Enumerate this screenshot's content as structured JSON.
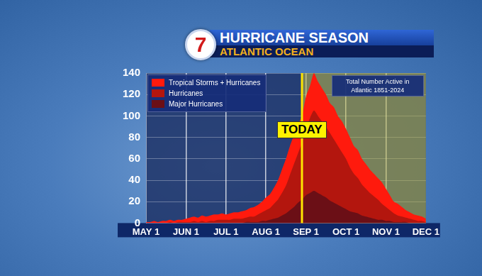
{
  "chart_data": {
    "type": "area",
    "title": "HURRICANE SEASON",
    "subtitle": "ATLANTIC OCEAN",
    "logo": "7",
    "note": "Total Number Active in Atlantic 1851-2024",
    "annotations": [
      {
        "text": "TODAY",
        "category_index": 39
      }
    ],
    "categories": [
      "MAY 1",
      null,
      null,
      null,
      null,
      null,
      null,
      null,
      null,
      null,
      "JUN 1",
      null,
      null,
      null,
      null,
      null,
      null,
      null,
      null,
      null,
      "JUL 1",
      null,
      null,
      null,
      null,
      null,
      null,
      null,
      null,
      null,
      "AUG 1",
      null,
      null,
      null,
      null,
      null,
      null,
      null,
      null,
      null,
      "SEP 1",
      null,
      null,
      null,
      null,
      null,
      null,
      null,
      null,
      null,
      "OCT 1",
      null,
      null,
      null,
      null,
      null,
      null,
      null,
      null,
      null,
      "NOV 1",
      null,
      null,
      null,
      null,
      null,
      null,
      null,
      null,
      null,
      "DEC 1"
    ],
    "series": [
      {
        "name": "Tropical Storms + Hurricanes",
        "color": "#ff1a0d",
        "values": [
          1,
          1,
          2,
          1,
          2,
          2,
          3,
          2,
          3,
          3,
          4,
          5,
          6,
          5,
          7,
          6,
          7,
          8,
          8,
          9,
          8,
          9,
          10,
          10,
          11,
          12,
          14,
          15,
          17,
          20,
          24,
          27,
          33,
          40,
          50,
          60,
          72,
          82,
          92,
          100,
          118,
          128,
          140,
          132,
          126,
          120,
          112,
          108,
          100,
          95,
          88,
          80,
          72,
          68,
          60,
          55,
          50,
          46,
          42,
          38,
          32,
          26,
          20,
          18,
          15,
          12,
          10,
          8,
          7,
          6,
          4
        ]
      },
      {
        "name": "Hurricanes",
        "color": "#b3160e",
        "values": [
          0,
          0,
          0,
          0,
          0,
          0,
          1,
          0,
          1,
          1,
          1,
          1,
          2,
          1,
          2,
          1,
          2,
          2,
          3,
          3,
          3,
          3,
          4,
          4,
          4,
          5,
          6,
          6,
          8,
          10,
          12,
          14,
          18,
          22,
          28,
          35,
          45,
          55,
          65,
          75,
          88,
          98,
          105,
          100,
          95,
          90,
          84,
          78,
          72,
          66,
          60,
          52,
          46,
          42,
          36,
          32,
          28,
          25,
          22,
          18,
          15,
          12,
          9,
          7,
          6,
          5,
          4,
          3,
          2,
          2,
          1
        ]
      },
      {
        "name": "Major Hurricanes",
        "color": "#6b0f16",
        "values": [
          0,
          0,
          0,
          0,
          0,
          0,
          0,
          0,
          0,
          0,
          0,
          0,
          0,
          0,
          0,
          0,
          0,
          0,
          0,
          0,
          0,
          0,
          0,
          0,
          0,
          1,
          1,
          1,
          1,
          2,
          2,
          3,
          4,
          5,
          7,
          9,
          12,
          15,
          19,
          22,
          26,
          28,
          30,
          28,
          26,
          24,
          21,
          19,
          17,
          15,
          13,
          11,
          10,
          9,
          7,
          6,
          5,
          4,
          3,
          3,
          2,
          2,
          1,
          1,
          1,
          1,
          0,
          0,
          0,
          0,
          0
        ]
      }
    ],
    "ylim": [
      0,
      140
    ],
    "yticks": [
      0,
      20,
      40,
      60,
      80,
      100,
      120,
      140
    ],
    "grid": true,
    "legend": "upper left",
    "stacked": false
  }
}
